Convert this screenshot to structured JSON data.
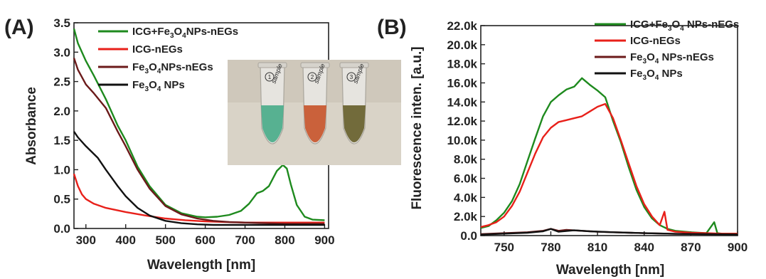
{
  "chart_data": [
    {
      "panel_label": "(A)",
      "type": "line",
      "xlabel": "Wavelength [nm]",
      "ylabel": "Absorbance",
      "xlim": [
        270,
        910
      ],
      "ylim": [
        0,
        3.5
      ],
      "x_ticks": [
        "300",
        "400",
        "500",
        "600",
        "700",
        "800",
        "900"
      ],
      "y_ticks": [
        "0.0",
        "0.5",
        "1.0",
        "1.5",
        "2.0",
        "2.5",
        "3.0",
        "3.5"
      ],
      "legend_position": "top-right",
      "series": [
        {
          "name": "ICG+Fe3O4NPs-nEGs",
          "legend_parts": [
            "ICG+Fe",
            "3",
            "O",
            "4",
            "NPs-nEGs"
          ],
          "color": "#1e8a1e",
          "x": [
            270,
            280,
            300,
            320,
            350,
            380,
            400,
            430,
            460,
            500,
            540,
            580,
            600,
            630,
            660,
            690,
            710,
            730,
            745,
            760,
            780,
            795,
            805,
            815,
            830,
            850,
            870,
            900
          ],
          "y": [
            3.4,
            3.15,
            2.85,
            2.6,
            2.2,
            1.75,
            1.5,
            1.05,
            0.72,
            0.4,
            0.26,
            0.2,
            0.19,
            0.2,
            0.23,
            0.3,
            0.42,
            0.6,
            0.64,
            0.72,
            0.98,
            1.08,
            1.02,
            0.75,
            0.4,
            0.2,
            0.15,
            0.14
          ]
        },
        {
          "name": "ICG-nEGs",
          "legend_parts": [
            "ICG-nEGs"
          ],
          "color": "#e8201a",
          "x": [
            270,
            280,
            290,
            300,
            320,
            350,
            400,
            450,
            500,
            550,
            600,
            650,
            700,
            750,
            800,
            850,
            900
          ],
          "y": [
            0.93,
            0.72,
            0.58,
            0.5,
            0.42,
            0.35,
            0.28,
            0.22,
            0.17,
            0.14,
            0.12,
            0.11,
            0.1,
            0.1,
            0.1,
            0.1,
            0.1
          ]
        },
        {
          "name": "Fe3O4NPs-nEGs",
          "legend_parts": [
            "Fe",
            "3",
            "O",
            "4",
            "NPs-nEGs"
          ],
          "color": "#6b1a1a",
          "x": [
            270,
            280,
            300,
            320,
            350,
            380,
            400,
            430,
            460,
            500,
            540,
            580,
            620,
            660,
            700,
            750,
            800,
            850,
            900
          ],
          "y": [
            2.9,
            2.7,
            2.45,
            2.3,
            2.05,
            1.65,
            1.4,
            1.0,
            0.68,
            0.38,
            0.24,
            0.17,
            0.13,
            0.11,
            0.1,
            0.09,
            0.08,
            0.08,
            0.08
          ]
        },
        {
          "name": "Fe3O4 NPs",
          "legend_parts": [
            "Fe",
            "3",
            "O",
            "4",
            " NPs"
          ],
          "color": "#111111",
          "x": [
            270,
            280,
            300,
            330,
            350,
            380,
            400,
            430,
            460,
            500,
            540,
            580,
            620,
            660,
            700,
            750,
            800,
            850,
            900
          ],
          "y": [
            1.65,
            1.55,
            1.4,
            1.2,
            1.0,
            0.72,
            0.55,
            0.35,
            0.22,
            0.13,
            0.09,
            0.07,
            0.06,
            0.06,
            0.06,
            0.06,
            0.06,
            0.06,
            0.06
          ]
        }
      ]
    },
    {
      "panel_label": "(B)",
      "type": "line",
      "xlabel": "Wavelength [nm]",
      "ylabel": "Fluorescence inten. [a.u.]",
      "xlim": [
        735,
        900
      ],
      "ylim": [
        0,
        22000
      ],
      "x_ticks": [
        "750",
        "780",
        "810",
        "840",
        "870",
        "900"
      ],
      "y_ticks": [
        "0.0",
        "2.0k",
        "4.0k",
        "6.0k",
        "8.0k",
        "10.0k",
        "12.0k",
        "14.0k",
        "16.0k",
        "18.0k",
        "20.0k",
        "22.0k"
      ],
      "legend_position": "top-right",
      "series": [
        {
          "name": "ICG+Fe3O4 NPs-nEGs",
          "legend_parts": [
            "ICG+Fe",
            "3",
            "O",
            "4",
            " NPs-nEGs"
          ],
          "color": "#1e8a1e",
          "x": [
            735,
            740,
            745,
            750,
            755,
            760,
            765,
            770,
            775,
            780,
            785,
            790,
            795,
            800,
            805,
            810,
            815,
            820,
            825,
            830,
            835,
            840,
            845,
            850,
            855,
            860,
            870,
            880,
            885,
            887,
            890,
            900
          ],
          "y": [
            800,
            1000,
            1600,
            2400,
            3600,
            5400,
            7800,
            10200,
            12500,
            14000,
            14700,
            15300,
            15600,
            16500,
            15800,
            15200,
            14500,
            12000,
            9800,
            7200,
            4800,
            3000,
            1800,
            1100,
            700,
            500,
            350,
            250,
            1400,
            250,
            200,
            200
          ]
        },
        {
          "name": "ICG-nEGs",
          "legend_parts": [
            "ICG-nEGs"
          ],
          "color": "#e8201a",
          "x": [
            735,
            740,
            745,
            750,
            755,
            760,
            765,
            770,
            775,
            780,
            785,
            790,
            795,
            800,
            805,
            810,
            815,
            820,
            825,
            830,
            835,
            840,
            845,
            850,
            853,
            855,
            860,
            870,
            880,
            890,
            900
          ],
          "y": [
            900,
            1100,
            1400,
            2000,
            3100,
            4600,
            6600,
            8600,
            10300,
            11300,
            11900,
            12100,
            12300,
            12500,
            13000,
            13500,
            13800,
            12300,
            10000,
            7600,
            5200,
            3300,
            2000,
            1100,
            2500,
            600,
            400,
            300,
            250,
            200,
            200
          ]
        },
        {
          "name": "Fe3O4 NPs-nEGs",
          "legend_parts": [
            "Fe",
            "3",
            "O",
            "4",
            " NPs-nEGs"
          ],
          "color": "#6b1a1a",
          "x": [
            735,
            750,
            765,
            775,
            780,
            785,
            790,
            800,
            810,
            820,
            840,
            860,
            880,
            900
          ],
          "y": [
            150,
            250,
            350,
            500,
            700,
            500,
            600,
            500,
            400,
            350,
            250,
            180,
            150,
            120
          ]
        },
        {
          "name": "Fe3O4 NPs",
          "legend_parts": [
            "Fe",
            "3",
            "O",
            "4",
            " NPs"
          ],
          "color": "#111111",
          "x": [
            735,
            750,
            765,
            775,
            780,
            785,
            795,
            805,
            820,
            840,
            860,
            880,
            900
          ],
          "y": [
            100,
            200,
            300,
            450,
            700,
            400,
            550,
            450,
            350,
            250,
            180,
            150,
            120
          ]
        }
      ]
    }
  ],
  "inset_photo": {
    "tubes": [
      {
        "label": "sample",
        "number": "1",
        "liquid_color": "#4fae8c"
      },
      {
        "label": "sample",
        "number": "2",
        "liquid_color": "#c85a32"
      },
      {
        "label": "sample",
        "number": "3",
        "liquid_color": "#6b6432"
      }
    ]
  }
}
